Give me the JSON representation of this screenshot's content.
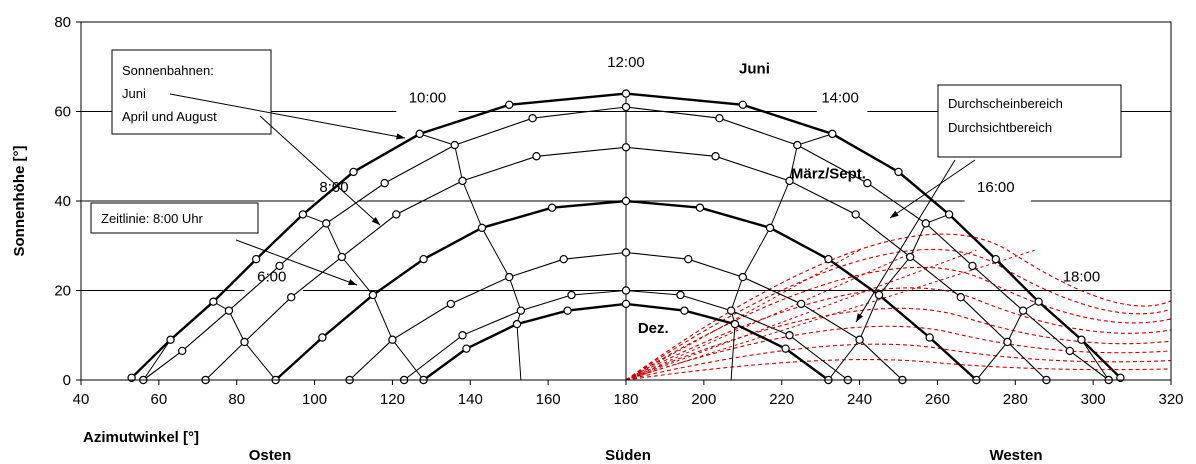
{
  "chart_data": {
    "type": "line",
    "title": "",
    "xlabel": "Azimutwinkel [°]",
    "ylabel": "Sonnenhöhe [°]",
    "xlim": [
      40,
      320
    ],
    "ylim": [
      0,
      80
    ],
    "xticks": [
      "40",
      "60",
      "80",
      "100",
      "120",
      "140",
      "160",
      "180",
      "200",
      "220",
      "240",
      "260",
      "280",
      "300",
      "320"
    ],
    "yticks": [
      "0",
      "20",
      "40",
      "60",
      "80"
    ],
    "directions": [
      "Osten",
      "Süden",
      "Westen"
    ],
    "grid": "horizontal",
    "series": [
      {
        "name": "Juni",
        "bold": true,
        "points": [
          [
            53,
            0.5
          ],
          [
            63,
            9
          ],
          [
            74,
            17.5
          ],
          [
            85,
            27
          ],
          [
            97,
            37
          ],
          [
            110,
            46.5
          ],
          [
            127,
            55
          ],
          [
            150,
            61.5
          ],
          [
            180,
            64
          ],
          [
            210,
            61.5
          ],
          [
            233,
            55
          ],
          [
            250,
            46.5
          ],
          [
            263,
            37
          ],
          [
            275,
            27
          ],
          [
            286,
            17.5
          ],
          [
            297,
            9
          ],
          [
            307,
            0.5
          ]
        ]
      },
      {
        "name": "",
        "bold": false,
        "points": [
          [
            56,
            0
          ],
          [
            66,
            6.5
          ],
          [
            78,
            15.5
          ],
          [
            91,
            25.5
          ],
          [
            103,
            35
          ],
          [
            118,
            44
          ],
          [
            136,
            52.5
          ],
          [
            156,
            58.5
          ],
          [
            180,
            61
          ],
          [
            204,
            58.5
          ],
          [
            224,
            52.5
          ],
          [
            242,
            44
          ],
          [
            257,
            35
          ],
          [
            269,
            25.5
          ],
          [
            282,
            15.5
          ],
          [
            294,
            6.5
          ],
          [
            304,
            0
          ]
        ]
      },
      {
        "name": "",
        "bold": false,
        "points": [
          [
            72,
            0
          ],
          [
            82,
            8.5
          ],
          [
            94,
            18.5
          ],
          [
            107,
            27.5
          ],
          [
            121,
            37
          ],
          [
            138,
            44.5
          ],
          [
            157,
            50
          ],
          [
            180,
            52
          ],
          [
            203,
            50
          ],
          [
            222,
            44.5
          ],
          [
            239,
            37
          ],
          [
            253,
            27.5
          ],
          [
            266,
            18.5
          ],
          [
            278,
            8.5
          ],
          [
            288,
            0
          ]
        ]
      },
      {
        "name": "März/Sept.",
        "bold": true,
        "points": [
          [
            90,
            0
          ],
          [
            102,
            9.5
          ],
          [
            115,
            19
          ],
          [
            128,
            27
          ],
          [
            143,
            34
          ],
          [
            161,
            38.5
          ],
          [
            180,
            40
          ],
          [
            199,
            38.5
          ],
          [
            217,
            34
          ],
          [
            232,
            27
          ],
          [
            245,
            19
          ],
          [
            258,
            9.5
          ],
          [
            270,
            0
          ]
        ]
      },
      {
        "name": "",
        "bold": false,
        "points": [
          [
            109,
            0
          ],
          [
            120,
            9
          ],
          [
            135,
            17
          ],
          [
            150,
            23
          ],
          [
            164,
            27
          ],
          [
            180,
            28.5
          ],
          [
            196,
            27
          ],
          [
            210,
            23
          ],
          [
            225,
            17
          ],
          [
            240,
            9
          ],
          [
            251,
            0
          ]
        ]
      },
      {
        "name": "",
        "bold": false,
        "points": [
          [
            123,
            0
          ],
          [
            138,
            10
          ],
          [
            153,
            15.5
          ],
          [
            166,
            19
          ],
          [
            180,
            20
          ],
          [
            194,
            19
          ],
          [
            207,
            15.5
          ],
          [
            222,
            10
          ],
          [
            237,
            0
          ]
        ]
      },
      {
        "name": "Dez.",
        "bold": true,
        "points": [
          [
            128,
            0
          ],
          [
            139,
            7
          ],
          [
            152,
            12.5
          ],
          [
            165,
            15.5
          ],
          [
            180,
            17
          ],
          [
            195,
            15.5
          ],
          [
            208,
            12.5
          ],
          [
            221,
            7
          ],
          [
            232,
            0
          ]
        ]
      }
    ],
    "hour_lines": [
      {
        "label": "6:00",
        "points": [
          [
            56,
            0
          ],
          [
            63,
            9
          ],
          [
            74,
            17.5
          ],
          [
            85,
            27
          ],
          [
            97,
            37
          ],
          [
            103,
            35
          ],
          [
            107,
            27.5
          ],
          [
            115,
            19
          ],
          [
            120,
            9
          ],
          [
            128,
            0
          ]
        ]
      },
      {
        "label": "8:00",
        "points": [
          [
            74,
            17.5
          ],
          [
            78,
            15.5
          ],
          [
            82,
            8.5
          ],
          [
            90,
            0
          ]
        ]
      },
      {
        "label": "10:00",
        "points": [
          [
            127,
            55
          ],
          [
            136,
            52.5
          ],
          [
            138,
            44.5
          ],
          [
            143,
            34
          ],
          [
            150,
            23
          ],
          [
            153,
            15.5
          ],
          [
            152,
            12.5
          ],
          [
            153,
            0
          ]
        ]
      },
      {
        "label": "12:00",
        "points": [
          [
            180,
            64
          ],
          [
            180,
            0
          ]
        ]
      },
      {
        "label": "14:00",
        "points": [
          [
            233,
            55
          ],
          [
            224,
            52.5
          ],
          [
            222,
            44.5
          ],
          [
            217,
            34
          ],
          [
            210,
            23
          ],
          [
            207,
            15.5
          ],
          [
            208,
            12.5
          ],
          [
            207,
            0
          ]
        ]
      },
      {
        "label": "16:00",
        "points": [
          [
            286,
            17.5
          ],
          [
            282,
            15.5
          ],
          [
            278,
            8.5
          ],
          [
            270,
            0
          ]
        ]
      },
      {
        "label": "18:00",
        "points": [
          [
            304,
            0
          ],
          [
            297,
            9
          ],
          [
            286,
            17.5
          ],
          [
            275,
            27
          ],
          [
            263,
            37
          ],
          [
            257,
            35
          ],
          [
            253,
            27.5
          ],
          [
            245,
            19
          ],
          [
            240,
            9
          ],
          [
            232,
            0
          ]
        ]
      }
    ],
    "hour_labels": [
      {
        "text": "6:00",
        "x": 89,
        "y": 22
      },
      {
        "text": "8:00",
        "x": 105,
        "y": 42
      },
      {
        "text": "10:00",
        "x": 129,
        "y": 62
      },
      {
        "text": "12:00",
        "x": 180,
        "y": 70
      },
      {
        "text": "14:00",
        "x": 235,
        "y": 62
      },
      {
        "text": "16:00",
        "x": 275,
        "y": 42
      },
      {
        "text": "18:00",
        "x": 297,
        "y": 22
      }
    ],
    "series_labels": [
      {
        "text": "Juni",
        "x": 213,
        "y": 68.5
      },
      {
        "text": "März/Sept.",
        "x": 232,
        "y": 45
      },
      {
        "text": "Dez.",
        "x": 187,
        "y": 10.5
      }
    ],
    "callouts": [
      {
        "lines": [
          "Sonnenbahnen:",
          "Juni",
          "April und August"
        ]
      },
      {
        "lines": [
          "Zeitlinie: 8:00 Uhr"
        ]
      },
      {
        "lines": [
          "Durchscheinbereich",
          "Durchsichtbereich"
        ]
      }
    ],
    "obstruction_color": "#cc0000"
  }
}
